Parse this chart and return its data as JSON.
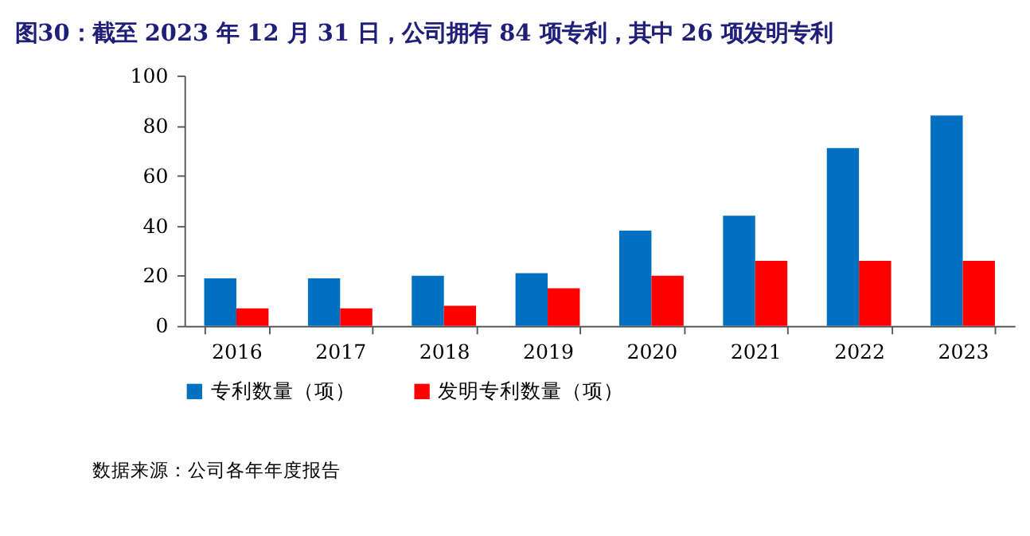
{
  "chart_data": {
    "type": "bar",
    "title": "图30：截至 2023 年 12 月 31 日，公司拥有 84 项专利，其中 26 项发明专利",
    "categories": [
      "2016",
      "2017",
      "2018",
      "2019",
      "2020",
      "2021",
      "2022",
      "2023"
    ],
    "series": [
      {
        "name": "专利数量（项）",
        "color": "#0070c0",
        "values": [
          19,
          19,
          20,
          21,
          38,
          44,
          71,
          84
        ]
      },
      {
        "name": "发明专利数量（项）",
        "color": "#ff0000",
        "values": [
          7,
          7,
          8,
          15,
          20,
          26,
          26,
          26
        ]
      }
    ],
    "ylim": [
      0,
      100
    ],
    "yticks": [
      0,
      20,
      40,
      60,
      80,
      100
    ],
    "grid": false,
    "legend": "bottom",
    "annotations": [
      "数据来源：公司各年年度报告"
    ]
  }
}
